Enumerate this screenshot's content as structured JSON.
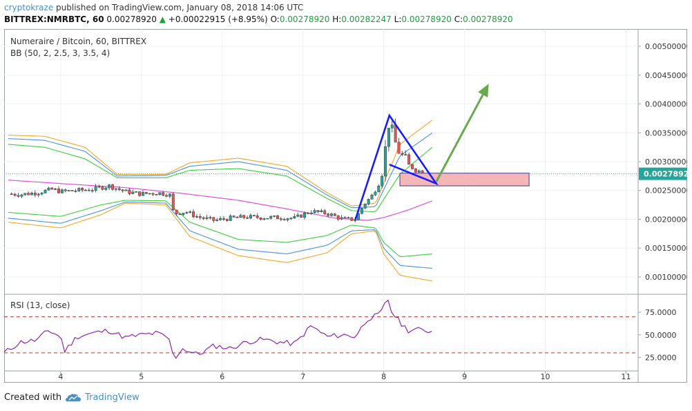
{
  "header": {
    "author": "cryptokraze",
    "published_text": "published on TradingView.com, January 08, 2018 14:06 UTC",
    "symbol": "BITTREX:NMRBTC, 60",
    "last": "0.00278920",
    "change_arrow": "▲",
    "change": "+0.00022915 (+8.95%)",
    "o_label": "O:",
    "o_value": "0.00278920",
    "h_label": "H:",
    "h_value": "0.00282247",
    "l_label": "L:",
    "l_value": "0.00278920",
    "c_label": "C:",
    "c_value": "0.00278920"
  },
  "main_pane": {
    "title": "Numeraire / Bitcoin, 60, BITTREX",
    "indicator": "BB (50, 2, 2.5, 3, 3.5, 4)",
    "price_ticks": [
      "0.00500000",
      "0.00450000",
      "0.00400000",
      "0.00350000",
      "0.00300000",
      "0.00250000",
      "0.00200000",
      "0.00150000",
      "0.00100000"
    ],
    "price_tick_values": [
      0.005,
      0.0045,
      0.004,
      0.0035,
      0.003,
      0.0025,
      0.002,
      0.0015,
      0.001
    ],
    "current_price_label": "0.00278920",
    "current_price": 0.0027892
  },
  "rsi_pane": {
    "title": "RSI (13, close)",
    "ticks": [
      "75.0000",
      "50.0000",
      "25.0000"
    ],
    "tick_values": [
      75,
      50,
      25
    ],
    "upper_band": 70,
    "lower_band": 30
  },
  "x_axis": {
    "ticks": [
      "4",
      "5",
      "6",
      "7",
      "8",
      "9",
      "10",
      "11"
    ],
    "tick_values": [
      4,
      5,
      6,
      7,
      8,
      9,
      10,
      11
    ]
  },
  "footer": {
    "created_with": "Created with",
    "brand": "TradingView"
  },
  "colors": {
    "up": "#26a69a",
    "down": "#ef5350",
    "pattern": "#1a1aff",
    "arrow": "#6aa84f",
    "zone_fill": "#f4b6b6",
    "zone_border": "#3c3c8c",
    "basis": "#e040e0",
    "band_inner": "#37d037",
    "band_mid": "#4a90e2",
    "band_outer": "#f5a623",
    "rsi_line": "#8e24aa",
    "rsi_band": "#c0392b"
  },
  "chart_data": [
    {
      "type": "candlestick",
      "title": "Numeraire / Bitcoin, 60, BITTREX",
      "x_unit": "day of January 2018",
      "xlim": [
        3.3,
        11.15
      ],
      "ylim": [
        0.0007,
        0.0053
      ],
      "close_path": [
        [
          3.35,
          0.00244
        ],
        [
          3.5,
          0.00243
        ],
        [
          3.7,
          0.00246
        ],
        [
          3.9,
          0.00252
        ],
        [
          4.0,
          0.00248
        ],
        [
          4.2,
          0.0025
        ],
        [
          4.4,
          0.00252
        ],
        [
          4.6,
          0.00258
        ],
        [
          4.8,
          0.00248
        ],
        [
          5.0,
          0.00244
        ],
        [
          5.2,
          0.00246
        ],
        [
          5.35,
          0.00243
        ],
        [
          5.4,
          0.0021
        ],
        [
          5.55,
          0.00213
        ],
        [
          5.7,
          0.00204
        ],
        [
          5.9,
          0.00198
        ],
        [
          6.1,
          0.00202
        ],
        [
          6.3,
          0.00204
        ],
        [
          6.5,
          0.00203
        ],
        [
          6.7,
          0.00203
        ],
        [
          6.9,
          0.00202
        ],
        [
          7.1,
          0.00214
        ],
        [
          7.3,
          0.0021
        ],
        [
          7.5,
          0.002
        ],
        [
          7.65,
          0.002
        ],
        [
          7.75,
          0.00225
        ],
        [
          7.85,
          0.0024
        ],
        [
          7.95,
          0.00265
        ],
        [
          8.0,
          0.003
        ],
        [
          8.07,
          0.00375
        ],
        [
          8.12,
          0.0034
        ],
        [
          8.2,
          0.00315
        ],
        [
          8.3,
          0.00295
        ],
        [
          8.4,
          0.00285
        ],
        [
          8.5,
          0.00282
        ],
        [
          8.6,
          0.0027892
        ]
      ],
      "bollinger": {
        "basis": [
          [
            3.35,
            0.00268
          ],
          [
            4.0,
            0.00262
          ],
          [
            4.8,
            0.00255
          ],
          [
            5.5,
            0.00245
          ],
          [
            6.2,
            0.00233
          ],
          [
            6.8,
            0.00218
          ],
          [
            7.4,
            0.00202
          ],
          [
            7.8,
            0.00198
          ],
          [
            8.0,
            0.00203
          ],
          [
            8.3,
            0.00216
          ],
          [
            8.6,
            0.00232
          ]
        ],
        "upper_2": [
          [
            3.35,
            0.0033
          ],
          [
            3.8,
            0.00325
          ],
          [
            4.3,
            0.00305
          ],
          [
            4.7,
            0.00272
          ],
          [
            5.3,
            0.00272
          ],
          [
            5.6,
            0.00285
          ],
          [
            6.2,
            0.00288
          ],
          [
            6.8,
            0.00275
          ],
          [
            7.3,
            0.00236
          ],
          [
            7.6,
            0.00215
          ],
          [
            7.9,
            0.00213
          ],
          [
            8.2,
            0.00278
          ],
          [
            8.6,
            0.00325
          ]
        ],
        "lower_2": [
          [
            3.35,
            0.00212
          ],
          [
            4.0,
            0.00205
          ],
          [
            4.5,
            0.00225
          ],
          [
            4.8,
            0.00233
          ],
          [
            5.3,
            0.00232
          ],
          [
            5.6,
            0.00195
          ],
          [
            6.2,
            0.00165
          ],
          [
            6.8,
            0.0016
          ],
          [
            7.3,
            0.00172
          ],
          [
            7.6,
            0.0019
          ],
          [
            7.9,
            0.00185
          ],
          [
            8.0,
            0.0016
          ],
          [
            8.2,
            0.00135
          ],
          [
            8.6,
            0.0014
          ]
        ],
        "upper_3": [
          [
            3.35,
            0.0034
          ],
          [
            3.8,
            0.00337
          ],
          [
            4.3,
            0.00318
          ],
          [
            4.7,
            0.00275
          ],
          [
            5.3,
            0.00276
          ],
          [
            5.6,
            0.00292
          ],
          [
            6.2,
            0.003
          ],
          [
            6.8,
            0.00285
          ],
          [
            7.3,
            0.00242
          ],
          [
            7.6,
            0.0022
          ],
          [
            7.9,
            0.00222
          ],
          [
            8.2,
            0.0031
          ],
          [
            8.6,
            0.0035
          ]
        ],
        "lower_3": [
          [
            3.35,
            0.00202
          ],
          [
            4.0,
            0.00193
          ],
          [
            4.5,
            0.00215
          ],
          [
            4.8,
            0.0023
          ],
          [
            5.3,
            0.00228
          ],
          [
            5.6,
            0.0018
          ],
          [
            6.2,
            0.00148
          ],
          [
            6.8,
            0.0014
          ],
          [
            7.3,
            0.00155
          ],
          [
            7.6,
            0.0018
          ],
          [
            7.9,
            0.00182
          ],
          [
            8.0,
            0.0015
          ],
          [
            8.2,
            0.0012
          ],
          [
            8.6,
            0.00115
          ]
        ],
        "upper_4": [
          [
            3.35,
            0.00346
          ],
          [
            3.8,
            0.00344
          ],
          [
            4.3,
            0.00325
          ],
          [
            4.7,
            0.00278
          ],
          [
            5.3,
            0.00278
          ],
          [
            5.6,
            0.00298
          ],
          [
            6.2,
            0.00306
          ],
          [
            6.8,
            0.00292
          ],
          [
            7.3,
            0.00246
          ],
          [
            7.6,
            0.00223
          ],
          [
            7.9,
            0.00228
          ],
          [
            8.2,
            0.0033
          ],
          [
            8.6,
            0.00372
          ]
        ],
        "lower_4": [
          [
            3.35,
            0.00195
          ],
          [
            4.0,
            0.00185
          ],
          [
            4.5,
            0.00208
          ],
          [
            4.8,
            0.00228
          ],
          [
            5.3,
            0.00225
          ],
          [
            5.6,
            0.0017
          ],
          [
            6.2,
            0.00137
          ],
          [
            6.8,
            0.00125
          ],
          [
            7.3,
            0.00142
          ],
          [
            7.6,
            0.00175
          ],
          [
            7.9,
            0.0018
          ],
          [
            8.0,
            0.0014
          ],
          [
            8.2,
            0.00103
          ],
          [
            8.6,
            0.00093
          ]
        ]
      },
      "annotations": {
        "pattern": [
          [
            7.65,
            0.002
          ],
          [
            8.07,
            0.0038
          ],
          [
            8.65,
            0.00262
          ],
          [
            8.07,
            0.00295
          ],
          [
            8.65,
            0.00262
          ]
        ],
        "arrow": [
          [
            8.65,
            0.00265
          ],
          [
            9.3,
            0.00435
          ]
        ],
        "zone": {
          "x": [
            8.2,
            9.8
          ],
          "y": [
            0.00258,
            0.0028
          ]
        }
      }
    },
    {
      "type": "line",
      "title": "RSI (13, close)",
      "ylim": [
        10,
        95
      ],
      "x": [
        3.3,
        3.5,
        3.7,
        3.85,
        4.0,
        4.05,
        4.2,
        4.4,
        4.6,
        4.8,
        5.0,
        5.2,
        5.35,
        5.4,
        5.5,
        5.7,
        5.9,
        6.1,
        6.3,
        6.5,
        6.7,
        6.9,
        7.1,
        7.3,
        7.5,
        7.65,
        7.8,
        7.95,
        8.05,
        8.1,
        8.2,
        8.3,
        8.4,
        8.6
      ],
      "values": [
        30,
        42,
        44,
        55,
        48,
        32,
        48,
        52,
        55,
        47,
        50,
        52,
        45,
        22,
        35,
        28,
        38,
        35,
        42,
        45,
        42,
        40,
        60,
        48,
        50,
        48,
        68,
        72,
        90,
        75,
        64,
        55,
        56,
        54
      ]
    }
  ]
}
